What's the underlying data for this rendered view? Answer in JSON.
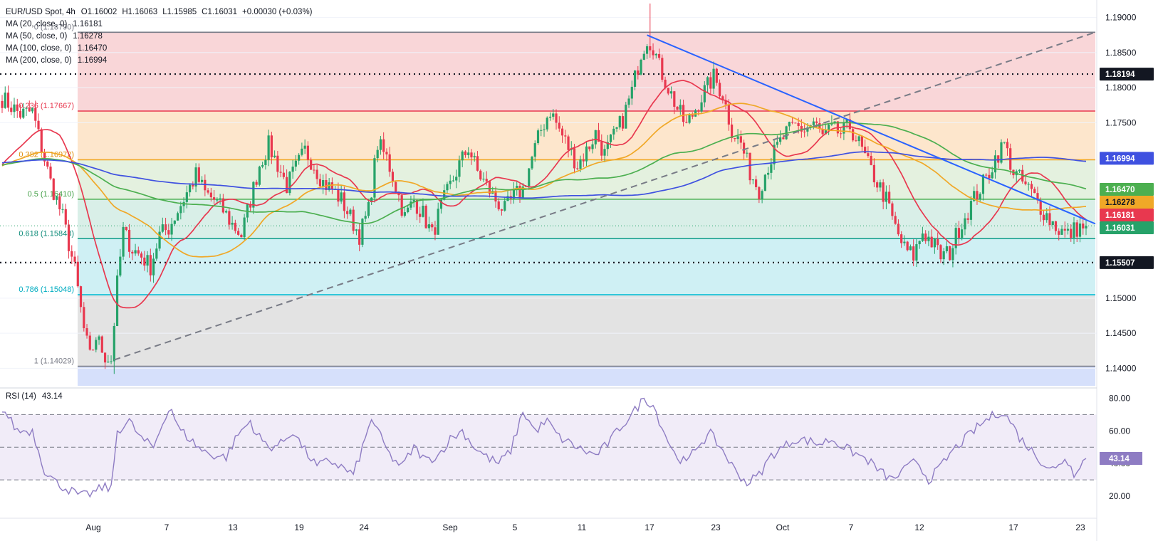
{
  "header": {
    "title": "EUR/USD Spot, 4h",
    "open": "O1.16002",
    "high": "H1.16063",
    "low": "L1.15985",
    "close": "C1.16031",
    "change": "+0.00030 (+0.03%)"
  },
  "moving_averages": [
    {
      "label": "MA (20, close, 0)",
      "value": "1.16181",
      "color": "#e8384f"
    },
    {
      "label": "MA (50, close, 0)",
      "value": "1.16278",
      "color": "#f0a827"
    },
    {
      "label": "MA (100, close, 0)",
      "value": "1.16470",
      "color": "#4caf50"
    },
    {
      "label": "MA (200, close, 0)",
      "value": "1.16994",
      "color": "#3f51e0"
    }
  ],
  "rsi_label": {
    "label": "RSI (14)",
    "value": "43.14",
    "color": "#8e7cc3"
  },
  "colors": {
    "up": "#26a269",
    "down": "#e8384f",
    "trendline": "#2962ff",
    "dashed": "#787b86",
    "rsi": "#8e7cc3"
  },
  "chart_data": {
    "type": "candlestick",
    "title": "EUR/USD Spot, 4h",
    "ylim": [
      1.1375,
      1.1925
    ],
    "yticks": [
      "1.14000",
      "1.14500",
      "1.15000",
      "1.15500",
      "1.17500",
      "1.18000",
      "1.18500",
      "1.19000"
    ],
    "xticks": [
      "Aug",
      "7",
      "13",
      "19",
      "24",
      "Sep",
      "5",
      "11",
      "17",
      "23",
      "Oct",
      "7",
      "12",
      "17",
      "23"
    ],
    "fibonacci": [
      {
        "label": "0 (1.18790)",
        "level": 1.1879
      },
      {
        "label": "0.236 (1.17667)",
        "level": 1.17667
      },
      {
        "label": "0.382 (1.16972)",
        "level": 1.16972
      },
      {
        "label": "0.5 (1.16410)",
        "level": 1.1641
      },
      {
        "label": "0.618 (1.15848)",
        "level": 1.15848
      },
      {
        "label": "0.786 (1.15048)",
        "level": 1.15048
      },
      {
        "label": "1 (1.14029)",
        "level": 1.14029
      }
    ],
    "horizontal_levels": [
      {
        "label": "1.18194",
        "level": 1.18194
      },
      {
        "label": "1.15507",
        "level": 1.15507
      }
    ],
    "price_tags": [
      {
        "label": "1.16994",
        "level": 1.16994,
        "color": "#3f51e0"
      },
      {
        "label": "1.16470",
        "level": 1.1647,
        "color": "#4caf50"
      },
      {
        "label": "1.16278",
        "level": 1.16278,
        "color": "#f0a827"
      },
      {
        "label": "1.16181",
        "level": 1.16181,
        "color": "#e8384f"
      },
      {
        "label": "1.16031",
        "level": 1.16031,
        "color": "#26a269"
      }
    ],
    "price_path": [
      [
        0,
        1.1785
      ],
      [
        6,
        1.1762
      ],
      [
        10,
        1.1766
      ],
      [
        13,
        1.1715
      ],
      [
        16,
        1.1665
      ],
      [
        20,
        1.1615
      ],
      [
        24,
        1.154
      ],
      [
        27,
        1.1455
      ],
      [
        29,
        1.1415
      ],
      [
        31,
        1.1445
      ],
      [
        34,
        1.1418
      ],
      [
        36,
        1.1412
      ],
      [
        38,
        1.152
      ],
      [
        40,
        1.1595
      ],
      [
        43,
        1.157
      ],
      [
        46,
        1.156
      ],
      [
        49,
        1.1545
      ],
      [
        52,
        1.159
      ],
      [
        55,
        1.16
      ],
      [
        58,
        1.1625
      ],
      [
        61,
        1.165
      ],
      [
        64,
        1.1675
      ],
      [
        67,
        1.165
      ],
      [
        70,
        1.164
      ],
      [
        73,
        1.1625
      ],
      [
        76,
        1.1605
      ],
      [
        79,
        1.159
      ],
      [
        82,
        1.164
      ],
      [
        85,
        1.169
      ],
      [
        88,
        1.1718
      ],
      [
        91,
        1.169
      ],
      [
        94,
        1.166
      ],
      [
        97,
        1.1685
      ],
      [
        100,
        1.171
      ],
      [
        103,
        1.169
      ],
      [
        106,
        1.1665
      ],
      [
        109,
        1.1655
      ],
      [
        112,
        1.164
      ],
      [
        115,
        1.1615
      ],
      [
        118,
        1.159
      ],
      [
        121,
        1.1625
      ],
      [
        124,
        1.172
      ],
      [
        127,
        1.17
      ],
      [
        130,
        1.166
      ],
      [
        133,
        1.1615
      ],
      [
        136,
        1.164
      ],
      [
        139,
        1.162
      ],
      [
        142,
        1.159
      ],
      [
        145,
        1.163
      ],
      [
        148,
        1.166
      ],
      [
        151,
        1.169
      ],
      [
        154,
        1.1715
      ],
      [
        157,
        1.168
      ],
      [
        160,
        1.166
      ],
      [
        163,
        1.164
      ],
      [
        166,
        1.1625
      ],
      [
        169,
        1.1645
      ],
      [
        172,
        1.1655
      ],
      [
        175,
        1.17
      ],
      [
        178,
        1.174
      ],
      [
        181,
        1.1768
      ],
      [
        184,
        1.174
      ],
      [
        187,
        1.1715
      ],
      [
        190,
        1.169
      ],
      [
        193,
        1.171
      ],
      [
        196,
        1.1735
      ],
      [
        199,
        1.1705
      ],
      [
        202,
        1.173
      ],
      [
        205,
        1.1755
      ],
      [
        208,
        1.1795
      ],
      [
        211,
        1.185
      ],
      [
        213,
        1.187
      ],
      [
        215,
        1.186
      ],
      [
        217,
        1.183
      ],
      [
        220,
        1.18
      ],
      [
        223,
        1.177
      ],
      [
        226,
        1.1745
      ],
      [
        229,
        1.177
      ],
      [
        232,
        1.1795
      ],
      [
        235,
        1.1815
      ],
      [
        238,
        1.179
      ],
      [
        241,
        1.174
      ],
      [
        244,
        1.172
      ],
      [
        247,
        1.168
      ],
      [
        250,
        1.1655
      ],
      [
        253,
        1.169
      ],
      [
        256,
        1.1715
      ],
      [
        259,
        1.1735
      ],
      [
        262,
        1.1745
      ],
      [
        265,
        1.174
      ],
      [
        268,
        1.175
      ],
      [
        271,
        1.173
      ],
      [
        274,
        1.174
      ],
      [
        277,
        1.1735
      ],
      [
        280,
        1.1745
      ],
      [
        283,
        1.172
      ],
      [
        286,
        1.169
      ],
      [
        289,
        1.1665
      ],
      [
        292,
        1.164
      ],
      [
        295,
        1.16
      ],
      [
        298,
        1.157
      ],
      [
        301,
        1.156
      ],
      [
        304,
        1.1595
      ],
      [
        307,
        1.158
      ],
      [
        310,
        1.156
      ],
      [
        313,
        1.1565
      ],
      [
        316,
        1.16
      ],
      [
        319,
        1.1625
      ],
      [
        322,
        1.165
      ],
      [
        325,
        1.167
      ],
      [
        328,
        1.17
      ],
      [
        331,
        1.172
      ],
      [
        334,
        1.168
      ],
      [
        337,
        1.1665
      ],
      [
        340,
        1.165
      ],
      [
        343,
        1.163
      ],
      [
        346,
        1.1612
      ],
      [
        349,
        1.1598
      ],
      [
        352,
        1.159
      ],
      [
        355,
        1.16
      ],
      [
        358,
        1.1603
      ]
    ],
    "spikes": [
      {
        "bar": 37,
        "high": 1.14,
        "low": 1.1392
      },
      {
        "bar": 214,
        "high": 1.192,
        "low": 1.185
      }
    ],
    "bars_total": 359,
    "rsi": {
      "ylim": [
        10,
        85
      ],
      "yticks": [
        "20.00",
        "40.00",
        "60.00",
        "80.00"
      ],
      "bands": [
        30,
        50,
        70
      ],
      "path": [
        [
          0,
          74
        ],
        [
          5,
          60
        ],
        [
          10,
          60
        ],
        [
          14,
          36
        ],
        [
          18,
          28
        ],
        [
          22,
          24
        ],
        [
          26,
          20
        ],
        [
          30,
          22
        ],
        [
          34,
          26
        ],
        [
          36,
          24
        ],
        [
          38,
          60
        ],
        [
          42,
          66
        ],
        [
          46,
          55
        ],
        [
          50,
          50
        ],
        [
          54,
          70
        ],
        [
          56,
          74
        ],
        [
          58,
          62
        ],
        [
          62,
          55
        ],
        [
          66,
          48
        ],
        [
          70,
          45
        ],
        [
          74,
          44
        ],
        [
          78,
          58
        ],
        [
          82,
          66
        ],
        [
          84,
          58
        ],
        [
          88,
          50
        ],
        [
          92,
          52
        ],
        [
          96,
          60
        ],
        [
          100,
          48
        ],
        [
          104,
          38
        ],
        [
          108,
          42
        ],
        [
          112,
          38
        ],
        [
          116,
          33
        ],
        [
          120,
          55
        ],
        [
          122,
          68
        ],
        [
          124,
          60
        ],
        [
          128,
          45
        ],
        [
          132,
          38
        ],
        [
          136,
          50
        ],
        [
          140,
          42
        ],
        [
          144,
          45
        ],
        [
          148,
          55
        ],
        [
          152,
          60
        ],
        [
          156,
          50
        ],
        [
          160,
          44
        ],
        [
          164,
          40
        ],
        [
          168,
          48
        ],
        [
          172,
          72
        ],
        [
          176,
          60
        ],
        [
          180,
          66
        ],
        [
          184,
          56
        ],
        [
          188,
          52
        ],
        [
          192,
          48
        ],
        [
          196,
          45
        ],
        [
          200,
          52
        ],
        [
          204,
          62
        ],
        [
          208,
          70
        ],
        [
          212,
          80
        ],
        [
          215,
          76
        ],
        [
          218,
          62
        ],
        [
          222,
          46
        ],
        [
          226,
          40
        ],
        [
          230,
          52
        ],
        [
          234,
          58
        ],
        [
          238,
          48
        ],
        [
          242,
          36
        ],
        [
          246,
          28
        ],
        [
          250,
          33
        ],
        [
          254,
          45
        ],
        [
          258,
          50
        ],
        [
          262,
          55
        ],
        [
          266,
          54
        ],
        [
          270,
          52
        ],
        [
          274,
          55
        ],
        [
          278,
          50
        ],
        [
          282,
          46
        ],
        [
          286,
          42
        ],
        [
          290,
          35
        ],
        [
          294,
          30
        ],
        [
          298,
          36
        ],
        [
          302,
          42
        ],
        [
          306,
          30
        ],
        [
          310,
          38
        ],
        [
          314,
          48
        ],
        [
          318,
          55
        ],
        [
          322,
          62
        ],
        [
          326,
          68
        ],
        [
          330,
          72
        ],
        [
          333,
          66
        ],
        [
          336,
          56
        ],
        [
          340,
          48
        ],
        [
          344,
          40
        ],
        [
          348,
          36
        ],
        [
          351,
          44
        ],
        [
          354,
          34
        ],
        [
          356,
          40
        ],
        [
          358,
          43.14
        ]
      ]
    }
  }
}
